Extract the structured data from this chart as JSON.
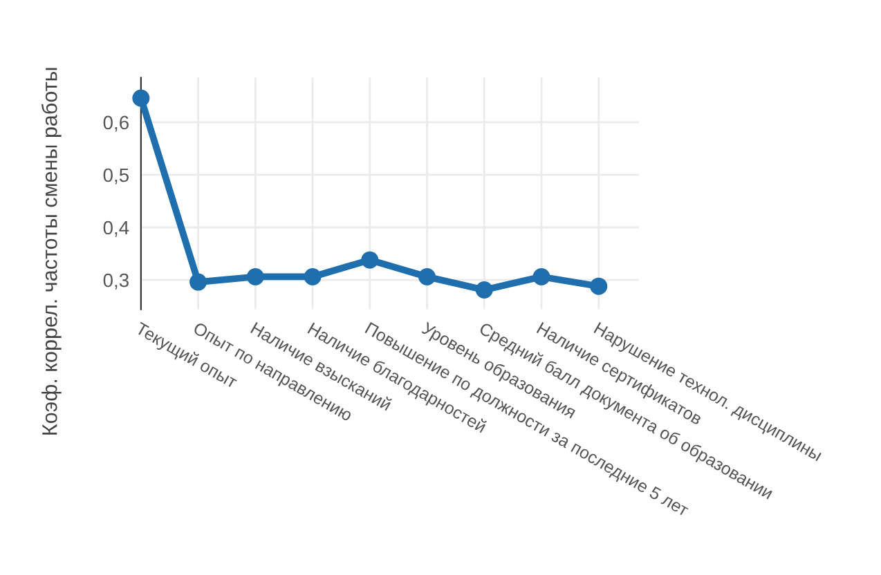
{
  "chart_data": {
    "type": "line",
    "ylabel": "Коэф. коррел. частоты смены работы",
    "categories": [
      "Текущий опыт",
      "Опыт по направлению",
      "Наличие взысканий",
      "Наличие благодарностей",
      "Повышение по должности за последние 5 лет",
      "Уровень образования",
      "Средний балл документа об образовании",
      "Наличие сертификатов",
      "Нарушение технол. дисциплины"
    ],
    "series": [
      {
        "color": "#1f6fae",
        "values": [
          0.646,
          0.296,
          0.306,
          0.306,
          0.338,
          0.306,
          0.281,
          0.306,
          0.288
        ]
      }
    ],
    "ylim": [
      0.244,
      0.685
    ],
    "yticks": [
      {
        "value": 0.3,
        "label": "0,3"
      },
      {
        "value": 0.4,
        "label": "0,4"
      },
      {
        "value": 0.5,
        "label": "0,5"
      },
      {
        "value": 0.6,
        "label": "0,6"
      }
    ],
    "grid": true,
    "marker": "circle",
    "line_style": "solid",
    "legend": false
  }
}
